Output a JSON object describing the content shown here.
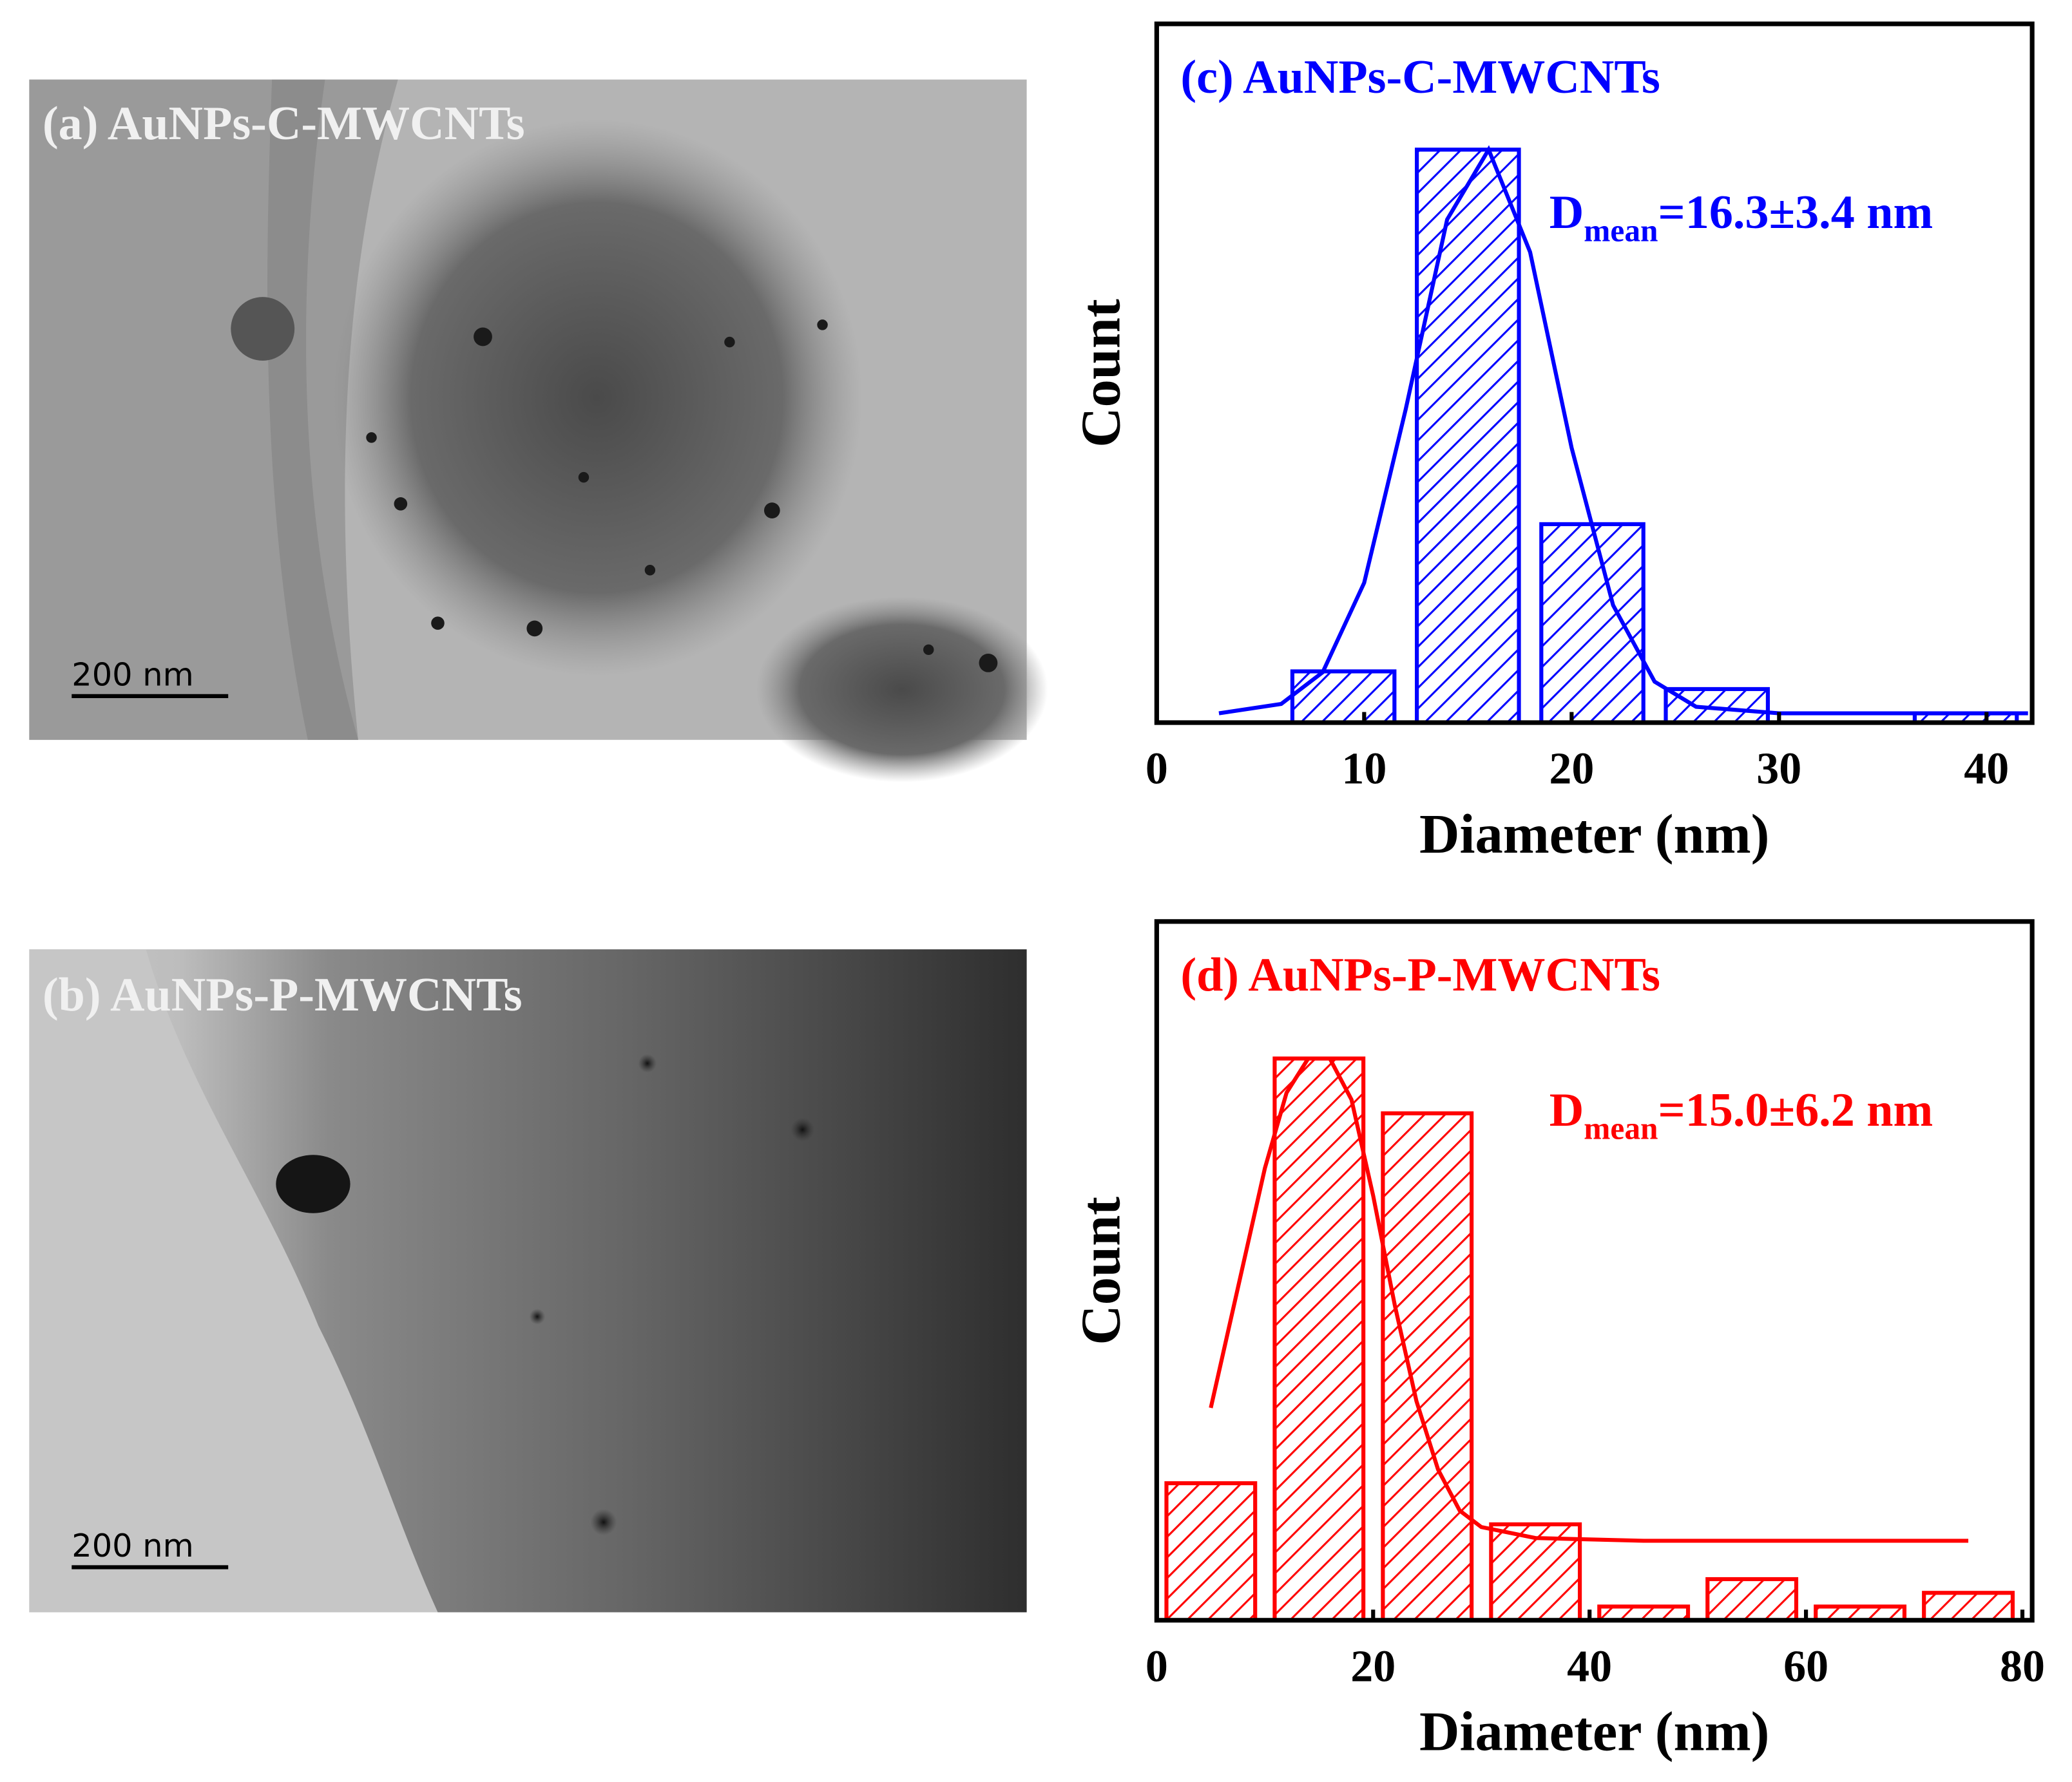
{
  "panels": [
    {
      "label": "(a) AuNPs-C-MWCNTs",
      "scale_bar": "200 nm"
    },
    {
      "label": "(b) AuNPs-P-MWCNTs",
      "scale_bar": "200 nm"
    }
  ],
  "chart_data": [
    {
      "type": "histogram",
      "title": "(c) AuNPs-C-MWCNTs",
      "color": "#0000ff",
      "xlabel": "Diameter (nm)",
      "ylabel": "Count",
      "bins": [
        6,
        12,
        18,
        24,
        30,
        36,
        42
      ],
      "values": [
        5.5,
        61.5,
        21.3,
        3.6,
        0,
        1
      ],
      "xlim": [
        0,
        42.2
      ],
      "ylim": [
        0,
        75
      ],
      "xticks": [
        0,
        10,
        20,
        30,
        40
      ],
      "fit": {
        "x": [
          3,
          6,
          8,
          10,
          12,
          14,
          16,
          18,
          20,
          22,
          24,
          26,
          30,
          35,
          42
        ],
        "values": [
          1,
          2,
          5.4,
          15,
          33.6,
          54,
          61.5,
          50.5,
          29.5,
          12.6,
          4.4,
          1.7,
          1,
          1,
          1
        ]
      },
      "annotation": {
        "symbol": "D",
        "subscript": "mean",
        "text": "=16.3±3.4 nm"
      }
    },
    {
      "type": "histogram",
      "title": "(d) AuNPs-P-MWCNTs",
      "color": "#ff0000",
      "xlabel": "Diameter (nm)",
      "ylabel": "Count",
      "bins": [
        0,
        10,
        20,
        30,
        40,
        50,
        60,
        70,
        80
      ],
      "values": [
        10,
        41,
        37,
        7,
        1,
        3,
        1,
        2
      ],
      "xlim": [
        0,
        80.9
      ],
      "ylim": [
        0,
        51
      ],
      "xticks": [
        0,
        20,
        40,
        60,
        80
      ],
      "fit": {
        "x": [
          5,
          8,
          10,
          12,
          14,
          16,
          18,
          20,
          22,
          24,
          26,
          28,
          30,
          35,
          45,
          55,
          65,
          75
        ],
        "values": [
          15.5,
          26,
          33,
          38.5,
          41,
          41,
          38,
          31,
          23,
          16,
          11,
          8,
          6.8,
          6,
          5.8,
          5.8,
          5.8,
          5.8
        ]
      },
      "annotation": {
        "symbol": "D",
        "subscript": "mean",
        "text": "=15.0±6.2 nm"
      }
    }
  ]
}
